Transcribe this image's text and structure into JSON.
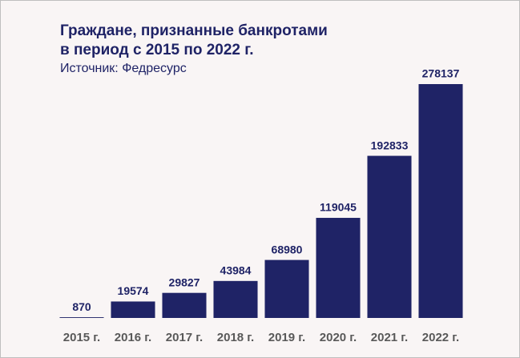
{
  "chart_data": {
    "type": "bar",
    "title": [
      "Граждане, признанные банкротами",
      "в период с 2015 по 2022 г."
    ],
    "subtitle": "Источник: Федресурс",
    "categories": [
      "2015 г.",
      "2016 г.",
      "2017 г.",
      "2018 г.",
      "2019 г.",
      "2020 г.",
      "2021 г.",
      "2022 г."
    ],
    "values": [
      870,
      19574,
      29827,
      43984,
      68980,
      119045,
      192833,
      278137
    ],
    "color": "#1f2366"
  }
}
